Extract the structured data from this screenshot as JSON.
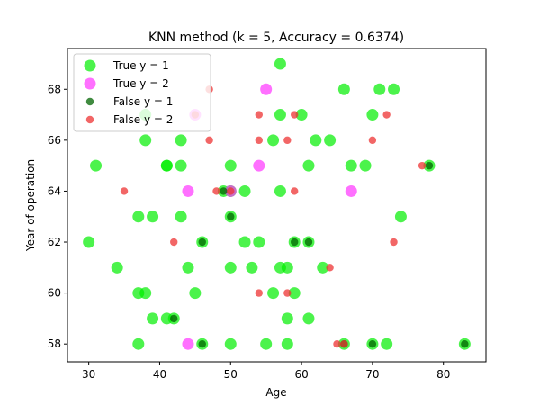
{
  "chart_data": {
    "type": "scatter",
    "title": "KNN method (k = 5, Accuracy = 0.6374)",
    "xlabel": "Age",
    "ylabel": "Year of operation",
    "xlim": [
      27,
      86
    ],
    "ylim": [
      57.3,
      69.6
    ],
    "xticks": [
      30,
      40,
      50,
      60,
      70,
      80
    ],
    "yticks": [
      58,
      60,
      62,
      64,
      66,
      68
    ],
    "grid": false,
    "legend_position": "top-left",
    "series": [
      {
        "name": "True y = 1",
        "color": "#00ee00",
        "marker": "large-circle",
        "points": [
          [
            57,
            69
          ],
          [
            71,
            68
          ],
          [
            73,
            68
          ],
          [
            66,
            68
          ],
          [
            38,
            67
          ],
          [
            57,
            67
          ],
          [
            60,
            67
          ],
          [
            70,
            67
          ],
          [
            38,
            66
          ],
          [
            43,
            66
          ],
          [
            56,
            66
          ],
          [
            62,
            66
          ],
          [
            64,
            66
          ],
          [
            31,
            65
          ],
          [
            41,
            65
          ],
          [
            43,
            65
          ],
          [
            50,
            65
          ],
          [
            61,
            65
          ],
          [
            67,
            65
          ],
          [
            69,
            65
          ],
          [
            78,
            65
          ],
          [
            41,
            65
          ],
          [
            49,
            64
          ],
          [
            52,
            64
          ],
          [
            57,
            64
          ],
          [
            50,
            64
          ],
          [
            37,
            63
          ],
          [
            39,
            63
          ],
          [
            43,
            63
          ],
          [
            50,
            63
          ],
          [
            74,
            63
          ],
          [
            30,
            62
          ],
          [
            46,
            62
          ],
          [
            52,
            62
          ],
          [
            54,
            62
          ],
          [
            59,
            62
          ],
          [
            61,
            62
          ],
          [
            34,
            61
          ],
          [
            44,
            61
          ],
          [
            50,
            61
          ],
          [
            53,
            61
          ],
          [
            57,
            61
          ],
          [
            58,
            61
          ],
          [
            63,
            61
          ],
          [
            37,
            60
          ],
          [
            38,
            60
          ],
          [
            45,
            60
          ],
          [
            56,
            60
          ],
          [
            59,
            60
          ],
          [
            39,
            59
          ],
          [
            41,
            59
          ],
          [
            42,
            59
          ],
          [
            58,
            59
          ],
          [
            61,
            59
          ],
          [
            37,
            58
          ],
          [
            46,
            58
          ],
          [
            50,
            58
          ],
          [
            55,
            58
          ],
          [
            58,
            58
          ],
          [
            66,
            58
          ],
          [
            70,
            58
          ],
          [
            72,
            58
          ],
          [
            83,
            58
          ]
        ]
      },
      {
        "name": "True y = 2",
        "color": "#ff33ff",
        "marker": "large-circle",
        "points": [
          [
            55,
            68
          ],
          [
            45,
            67
          ],
          [
            54,
            65
          ],
          [
            44,
            64
          ],
          [
            50,
            64
          ],
          [
            67,
            64
          ],
          [
            44,
            58
          ]
        ]
      },
      {
        "name": "False y = 1",
        "color": "#006400",
        "marker": "small-circle",
        "points": [
          [
            50,
            63
          ],
          [
            46,
            62
          ],
          [
            59,
            62
          ],
          [
            61,
            62
          ],
          [
            42,
            59
          ],
          [
            46,
            58
          ],
          [
            66,
            58
          ],
          [
            70,
            58
          ],
          [
            83,
            58
          ],
          [
            78,
            65
          ],
          [
            49,
            64
          ]
        ]
      },
      {
        "name": "False y = 2",
        "color": "#ee3333",
        "marker": "small-circle",
        "points": [
          [
            47,
            68
          ],
          [
            45,
            67
          ],
          [
            54,
            67
          ],
          [
            59,
            67
          ],
          [
            72,
            67
          ],
          [
            47,
            66
          ],
          [
            54,
            66
          ],
          [
            58,
            66
          ],
          [
            70,
            66
          ],
          [
            77,
            65
          ],
          [
            35,
            64
          ],
          [
            48,
            64
          ],
          [
            50,
            64
          ],
          [
            59,
            64
          ],
          [
            42,
            62
          ],
          [
            73,
            62
          ],
          [
            64,
            61
          ],
          [
            54,
            60
          ],
          [
            58,
            60
          ],
          [
            65,
            58
          ],
          [
            66,
            58
          ]
        ]
      }
    ]
  }
}
